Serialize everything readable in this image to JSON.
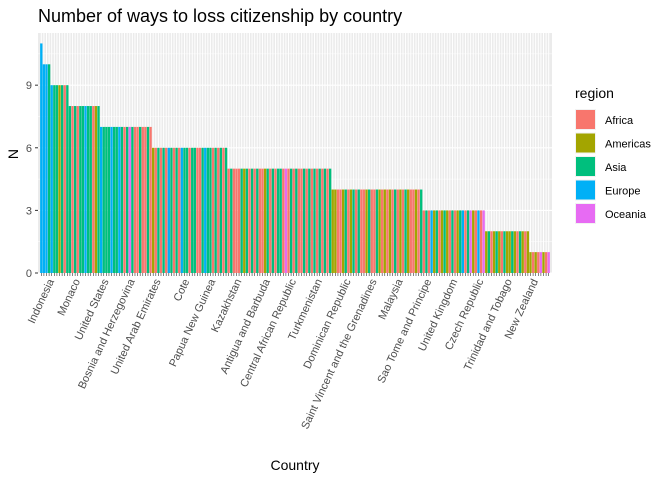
{
  "chart_data": {
    "type": "bar",
    "title": "Number of ways to loss citizenship by country",
    "xlabel": "Country",
    "ylabel": "N",
    "ylim": [
      0,
      11.5
    ],
    "yticks": [
      0,
      3,
      6,
      9
    ],
    "grid": true,
    "legend_position": "right",
    "legend": {
      "title": "region",
      "entries": [
        {
          "name": "Africa",
          "color": "#F8766D"
        },
        {
          "name": "Americas",
          "color": "#A3A500"
        },
        {
          "name": "Asia",
          "color": "#00BF7D"
        },
        {
          "name": "Europe",
          "color": "#00B0F6"
        },
        {
          "name": "Oceania",
          "color": "#E76BF3"
        }
      ]
    },
    "groups": [
      {
        "value": 11,
        "regions": [
          "Europe"
        ]
      },
      {
        "value": 10,
        "regions": [
          "Europe",
          "Europe",
          "Asia"
        ]
      },
      {
        "value": 9,
        "regions": [
          "Europe",
          "Asia",
          "Asia",
          "Americas",
          "Asia",
          "Africa",
          "Asia"
        ]
      },
      {
        "value": 8,
        "regions": [
          "Asia",
          "Africa",
          "Asia",
          "Africa",
          "Asia",
          "Asia",
          "Europe",
          "Asia",
          "Asia",
          "Africa",
          "Americas",
          "Asia"
        ]
      },
      {
        "value": 7,
        "regions": [
          "Europe",
          "Asia",
          "Asia",
          "Asia",
          "Europe",
          "Asia",
          "Asia",
          "Europe",
          "Asia",
          "Africa",
          "Asia",
          "Oceania",
          "Asia",
          "Africa",
          "Africa",
          "Asia",
          "Africa",
          "Africa",
          "Asia",
          "Africa"
        ]
      },
      {
        "value": 6,
        "regions": [
          "Americas",
          "Africa",
          "Asia",
          "Africa",
          "Asia",
          "Africa",
          "Europe",
          "Asia",
          "Africa",
          "Asia",
          "Africa",
          "Europe",
          "Asia",
          "Asia",
          "Africa",
          "Asia",
          "Asia",
          "Africa",
          "Africa",
          "Asia",
          "Europe",
          "Asia",
          "Asia",
          "Africa",
          "Asia",
          "Africa",
          "Asia",
          "Africa",
          "Asia"
        ]
      },
      {
        "value": 5,
        "regions": [
          "Africa",
          "Asia",
          "Africa",
          "Africa",
          "Africa",
          "Asia",
          "Americas",
          "Asia",
          "Africa",
          "Asia",
          "Africa",
          "Asia",
          "Africa",
          "Africa",
          "Americas",
          "Asia",
          "Africa",
          "Asia",
          "Africa",
          "Asia",
          "Asia",
          "Africa",
          "Oceania",
          "Africa",
          "Asia",
          "Africa",
          "Asia",
          "Africa",
          "Africa",
          "Asia",
          "Africa",
          "Asia",
          "Africa",
          "Asia",
          "Africa",
          "Asia",
          "Africa",
          "Asia",
          "Africa",
          "Asia"
        ]
      },
      {
        "value": 4,
        "regions": [
          "Americas",
          "Americas",
          "Africa",
          "Africa",
          "Americas",
          "Asia",
          "Africa",
          "Americas",
          "Asia",
          "Africa",
          "Asia",
          "Africa",
          "Africa",
          "Americas",
          "Asia",
          "Africa",
          "Africa",
          "Asia",
          "Americas",
          "Africa",
          "Americas",
          "Africa",
          "Americas",
          "Africa",
          "Asia",
          "Africa",
          "Americas",
          "Africa",
          "Asia",
          "Americas",
          "Africa",
          "Africa",
          "Americas",
          "Africa",
          "Asia"
        ]
      },
      {
        "value": 3,
        "regions": [
          "Africa",
          "Asia",
          "Africa",
          "Europe",
          "Americas",
          "Asia",
          "Africa",
          "Americas",
          "Asia",
          "Americas",
          "Africa",
          "Asia",
          "Africa",
          "Americas",
          "Asia",
          "Europe",
          "Africa",
          "Asia",
          "Oceania",
          "Americas",
          "Africa",
          "Europe",
          "Africa",
          "Oceania"
        ]
      },
      {
        "value": 2,
        "regions": [
          "Americas",
          "Asia",
          "Africa",
          "Americas",
          "Asia",
          "Americas",
          "Africa",
          "Asia",
          "Americas",
          "Americas",
          "Asia",
          "Americas",
          "Africa",
          "Asia",
          "Americas",
          "Africa",
          "Americas"
        ]
      },
      {
        "value": 1,
        "regions": [
          "Americas",
          "Africa",
          "Americas",
          "Africa",
          "Oceania",
          "Americas",
          "Africa",
          "Oceania"
        ]
      }
    ],
    "tick_labels": [
      "Indonesia",
      "Monaco",
      "United States",
      "Bosnia and Herzegovina",
      "United Arab Emirates",
      "Cote",
      "Papua New Guinea",
      "Kazakhstan",
      "Antigua and Barbuda",
      "Central African Republic",
      "Turkmenistan",
      "Dominican Republic",
      "Saint Vincent and the Grenadines",
      "Malaysia",
      "Sao Tome and Principe",
      "United Kingdom",
      "Czech Republic",
      "Trinidad and Tobago",
      "New Zealand"
    ]
  }
}
